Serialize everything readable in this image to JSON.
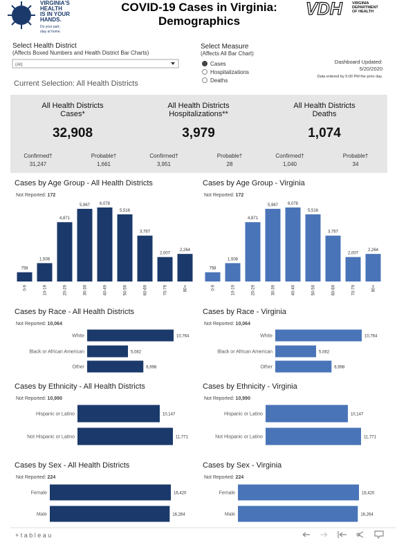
{
  "header": {
    "title_lines": [
      "COVID-19 Cases in Virginia:",
      "Demographics"
    ],
    "logo_left": {
      "lines": [
        "VIRGINIA'S",
        "HEALTH",
        "IS IN YOUR",
        "HANDS."
      ],
      "tagline": [
        "Do your part,",
        "stay at home."
      ]
    },
    "logo_right": {
      "mark": "VDH",
      "lines": [
        "VIRGINIA",
        "DEPARTMENT",
        "OF HEALTH"
      ]
    }
  },
  "filters": {
    "district": {
      "label": "Select Health District",
      "note": "(Affects Boxed Numbers and Health District Bar Charts)",
      "value": "(All)"
    },
    "current_selection": "Current Selection: All Health Districts",
    "measure": {
      "label": "Select Measure",
      "note": "(Affects All Bar Chart)",
      "options": [
        "Cases",
        "Hospitalizations",
        "Deaths"
      ],
      "selected": 0
    },
    "updated": [
      "Dashboard Updated:",
      "5/20/2020",
      "Data entered by 5:00 PM the prior day."
    ]
  },
  "summary": [
    {
      "title_lines": [
        "All Health Districts",
        "Cases*"
      ],
      "total": "32,908",
      "items": [
        {
          "label": "Confirmed†",
          "value": "31,247"
        },
        {
          "label": "Probable†",
          "value": "1,661"
        }
      ]
    },
    {
      "title_lines": [
        "All Health Districts",
        "Hospitalizations**"
      ],
      "total": "3,979",
      "items": [
        {
          "label": "Confirmed†",
          "value": "3,951"
        },
        {
          "label": "Probable†",
          "value": "28"
        }
      ]
    },
    {
      "title_lines": [
        "All Health Districts",
        "Deaths"
      ],
      "total": "1,074",
      "items": [
        {
          "label": "Confirmed†",
          "value": "1,040"
        },
        {
          "label": "Probable†",
          "value": "34"
        }
      ]
    }
  ],
  "chart_data": [
    {
      "type": "bar",
      "orientation": "vertical",
      "title": "Cases by Age Group - All Health Districts",
      "note_label": "Not Reported:",
      "note_value": "172",
      "color": "#1b3a6b",
      "categories": [
        "0-9",
        "10-19",
        "20-29",
        "30-39",
        "40-49",
        "50-59",
        "60-69",
        "70-79",
        "80+"
      ],
      "values": [
        758,
        1508,
        4871,
        5967,
        6078,
        5516,
        3767,
        2007,
        2264
      ],
      "value_labels": [
        "758",
        "1,508",
        "4,871",
        "5,967",
        "6,078",
        "5,516",
        "3,767",
        "2,007",
        "2,264"
      ]
    },
    {
      "type": "bar",
      "orientation": "vertical",
      "title": "Cases by Age Group - Virginia",
      "note_label": "Not Reported:",
      "note_value": "172",
      "color": "#4a74b8",
      "categories": [
        "0-9",
        "10-19",
        "20-29",
        "30-39",
        "40-49",
        "50-59",
        "60-69",
        "70-79",
        "80+"
      ],
      "values": [
        758,
        1508,
        4871,
        5967,
        6078,
        5516,
        3767,
        2007,
        2264
      ],
      "value_labels": [
        "758",
        "1,508",
        "4,871",
        "5,967",
        "6,078",
        "5,516",
        "3,767",
        "2,007",
        "2,264"
      ]
    },
    {
      "type": "bar",
      "orientation": "horizontal",
      "title": "Cases by Race - All Health Districts",
      "note_label": "Not Reported:",
      "note_value": "10,064",
      "color": "#1b3a6b",
      "categories": [
        "White",
        "Black or African American",
        "Other"
      ],
      "values": [
        10764,
        5082,
        6998
      ],
      "value_labels": [
        "10,764",
        "5,082",
        "6,998"
      ]
    },
    {
      "type": "bar",
      "orientation": "horizontal",
      "title": "Cases by Race - Virginia",
      "note_label": "Not Reported:",
      "note_value": "10,064",
      "color": "#4a74b8",
      "categories": [
        "White",
        "Black or African American",
        "Other"
      ],
      "values": [
        10764,
        5082,
        6998
      ],
      "value_labels": [
        "10,764",
        "5,082",
        "6,998"
      ]
    },
    {
      "type": "bar",
      "orientation": "horizontal",
      "title": "Cases by Ethnicity - All Health Districts",
      "note_label": "Not Reported:",
      "note_value": "10,990",
      "color": "#1b3a6b",
      "categories": [
        "Hispanic or Latino",
        "Not Hispanic or Latino"
      ],
      "values": [
        10147,
        11771
      ],
      "value_labels": [
        "10,147",
        "11,771"
      ]
    },
    {
      "type": "bar",
      "orientation": "horizontal",
      "title": "Cases by Ethnicity - Virginia",
      "note_label": "Not Reported:",
      "note_value": "10,990",
      "color": "#4a74b8",
      "categories": [
        "Hispanic or Latino",
        "Not Hispanic or Latino"
      ],
      "values": [
        10147,
        11771
      ],
      "value_labels": [
        "10,147",
        "11,771"
      ]
    },
    {
      "type": "bar",
      "orientation": "horizontal",
      "title": "Cases by Sex - All Health Districts",
      "note_label": "Not Reported:",
      "note_value": "224",
      "color": "#1b3a6b",
      "categories": [
        "Female",
        "Male"
      ],
      "values": [
        16420,
        16264
      ],
      "value_labels": [
        "16,420",
        "16,264"
      ]
    },
    {
      "type": "bar",
      "orientation": "horizontal",
      "title": "Cases by Sex - Virginia",
      "note_label": "Not Reported:",
      "note_value": "224",
      "color": "#4a74b8",
      "categories": [
        "Female",
        "Male"
      ],
      "values": [
        16420,
        16264
      ],
      "value_labels": [
        "16,420",
        "16,264"
      ]
    }
  ],
  "toolbar": {
    "brand": "+ t a b l e a u"
  }
}
